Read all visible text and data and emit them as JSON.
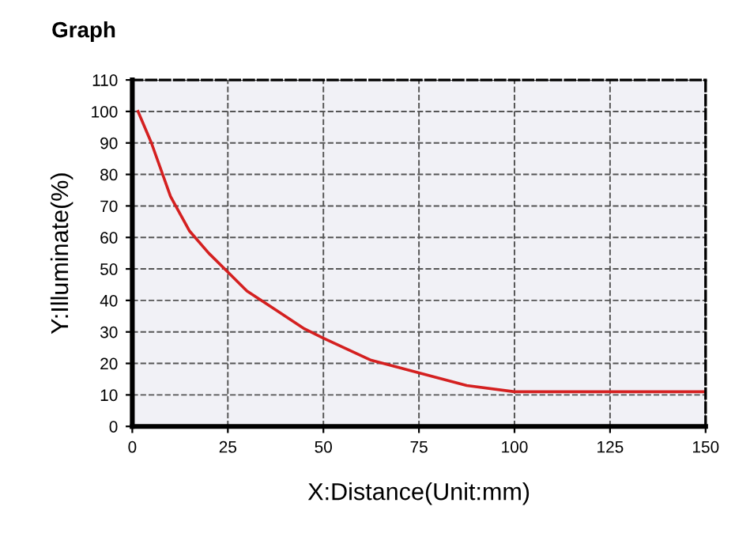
{
  "chart_data": {
    "type": "line",
    "title": "Graph",
    "xlabel": "X:Distance(Unit:mm)",
    "ylabel": "Y:Illuminate(%)",
    "series": [
      {
        "color": "#d42020",
        "x": [
          1.5,
          5,
          10,
          15,
          20,
          25,
          30,
          37.5,
          45,
          50,
          62.5,
          75,
          87.5,
          100,
          125,
          150
        ],
        "values": [
          100,
          90,
          73,
          62,
          55,
          49,
          43,
          37,
          31,
          28,
          21,
          17,
          13,
          11,
          11,
          11
        ]
      }
    ],
    "xlim": [
      0,
      150
    ],
    "ylim": [
      0,
      110
    ],
    "xticks": [
      0,
      25,
      50,
      75,
      100,
      125,
      150
    ],
    "yticks": [
      0,
      10,
      20,
      30,
      40,
      50,
      60,
      70,
      80,
      90,
      100,
      110
    ],
    "grid": true,
    "line_style": "solid",
    "marker": "none",
    "legend": false
  }
}
